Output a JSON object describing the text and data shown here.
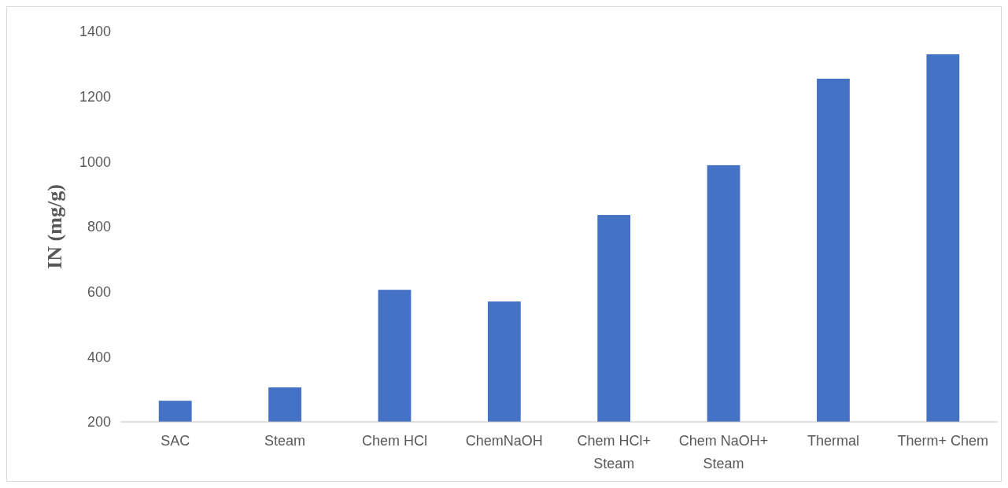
{
  "chart_data": {
    "type": "bar",
    "ylabel": "IN (mg/g)",
    "categories": [
      "SAC",
      "Steam",
      "Chem HCl",
      "ChemNaOH",
      "Chem HCl+ Steam",
      "Chem NaOH+ Steam",
      "Thermal",
      "Therm+ Chem"
    ],
    "values": [
      265,
      306,
      606,
      570,
      836,
      989,
      1255,
      1330
    ],
    "color": "#4472c4",
    "ylim": [
      200,
      1400
    ],
    "yticks": [
      200,
      400,
      600,
      800,
      1000,
      1200,
      1400
    ],
    "grid": false
  }
}
